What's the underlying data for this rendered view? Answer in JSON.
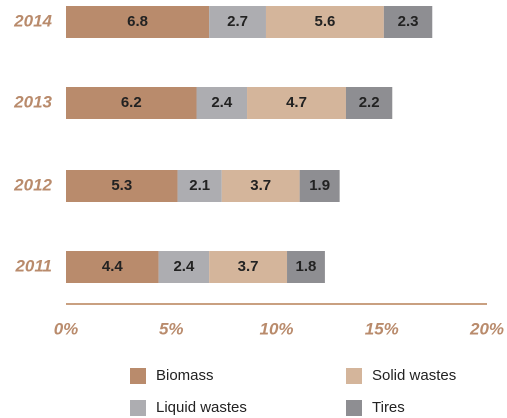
{
  "chart_data": {
    "type": "stacked_barh",
    "categories": [
      "2014",
      "2013",
      "2012",
      "2011"
    ],
    "series": [
      {
        "name": "Biomass",
        "color": "#b98b6c",
        "values": [
          6.8,
          6.2,
          5.3,
          4.4
        ]
      },
      {
        "name": "Liquid wastes",
        "color": "#adadb1",
        "values": [
          2.7,
          2.4,
          2.1,
          2.4
        ]
      },
      {
        "name": "Solid wastes",
        "color": "#d4b59b",
        "values": [
          5.6,
          4.7,
          3.7,
          3.7
        ]
      },
      {
        "name": "Tires",
        "color": "#8e8e92",
        "values": [
          2.3,
          2.2,
          1.9,
          1.8
        ]
      }
    ],
    "xlim": [
      0,
      20
    ],
    "xticks": [
      {
        "value": 0,
        "label": "0%"
      },
      {
        "value": 5,
        "label": "5%"
      },
      {
        "value": 10,
        "label": "10%"
      },
      {
        "value": 15,
        "label": "15%"
      },
      {
        "value": 20,
        "label": "20%"
      }
    ],
    "grid": false
  }
}
